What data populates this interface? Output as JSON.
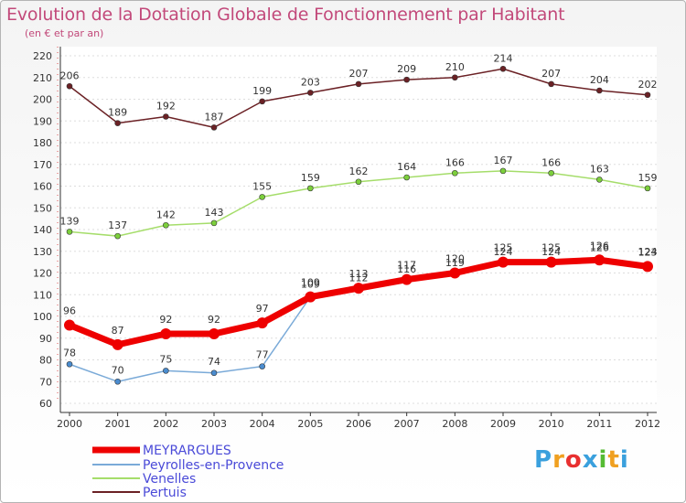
{
  "chart_data": {
    "type": "line",
    "title": "Evolution de la Dotation Globale de Fonctionnement par Habitant",
    "subtitle": "(en € et par an)",
    "x": [
      "2000",
      "2001",
      "2002",
      "2003",
      "2004",
      "2005",
      "2006",
      "2007",
      "2008",
      "2009",
      "2010",
      "2011",
      "2012"
    ],
    "ylim": [
      60,
      220
    ],
    "yticks": [
      60,
      70,
      80,
      90,
      100,
      110,
      120,
      130,
      140,
      150,
      160,
      170,
      180,
      190,
      200,
      210,
      220
    ],
    "series": [
      {
        "name": "Pertuis",
        "color": "#6b2125",
        "values": [
          206,
          189,
          192,
          187,
          199,
          203,
          207,
          209,
          210,
          214,
          207,
          204,
          202
        ]
      },
      {
        "name": "Venelles",
        "color": "#a5dd6a",
        "point_color": "#7ccf3c",
        "values": [
          139,
          137,
          142,
          143,
          155,
          159,
          162,
          164,
          166,
          167,
          166,
          163,
          159
        ]
      },
      {
        "name": "Peyrolles-en-Provence",
        "color": "#7aaad8",
        "point_color": "#4a8ccf",
        "values": [
          78,
          70,
          75,
          74,
          77,
          109,
          112,
          116,
          119,
          124,
          124,
          126,
          124
        ]
      },
      {
        "name": "MEYRARGUES",
        "color": "#ee0000",
        "values": [
          96,
          87,
          92,
          92,
          97,
          109,
          113,
          117,
          120,
          125,
          125,
          126,
          123
        ]
      }
    ],
    "legend": [
      "MEYRARGUES",
      "Peyrolles-en-Provence",
      "Venelles",
      "Pertuis"
    ]
  },
  "logo": {
    "letters": [
      "P",
      "r",
      "o",
      "x",
      "i",
      "t",
      "i"
    ],
    "colors": [
      "#3aa0dd",
      "#f0a020",
      "#e83030",
      "#3aa0dd",
      "#55bb33",
      "#f0a020",
      "#3aa0dd"
    ]
  }
}
